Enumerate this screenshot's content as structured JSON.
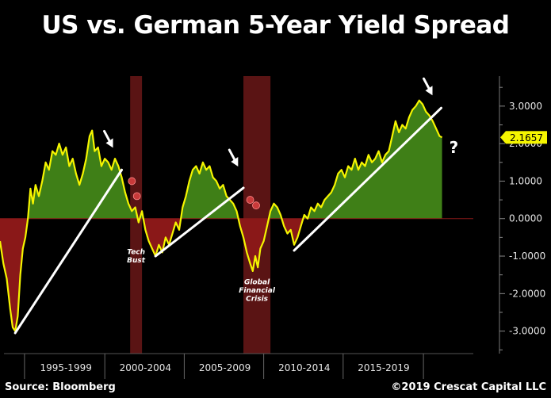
{
  "colors": {
    "background": "#000000",
    "line": "#f5f500",
    "positive_fill": "#3f7f17",
    "negative_fill": "#8a1818",
    "recession": "#5a1414",
    "trendline": "#ffffff",
    "current_value_box": "#f5f500"
  },
  "footer": {
    "source": "Source: Bloomberg",
    "copyright": "©2019 Crescat Capital LLC"
  },
  "chart_data": {
    "type": "area",
    "title": "US vs. German 5-Year Yield Spread",
    "x_axis": {
      "range": [
        1993.5,
        2021.5
      ],
      "tick_labels": [
        {
          "label": "1995-1999",
          "center": 1997.4
        },
        {
          "label": "2000-2004",
          "center": 2002.1
        },
        {
          "label": "2005-2009",
          "center": 2006.8
        },
        {
          "label": "2010-2014",
          "center": 2011.5
        },
        {
          "label": "2015-2019",
          "center": 2016.2
        }
      ],
      "period_boundaries": [
        1994.95,
        1999.7,
        2004.4,
        2009.1,
        2013.8,
        2018.55
      ]
    },
    "y_axis": {
      "range": [
        -3.6,
        3.8
      ],
      "position": "right",
      "ticks": [
        3,
        2,
        1,
        0,
        -1,
        -2,
        -3
      ],
      "tick_labels": [
        "3.0000",
        "2.0000",
        "1.0000",
        "0.0000",
        "-1.0000",
        "-2.0000",
        "-3.0000"
      ]
    },
    "current_value": {
      "value": 2.1657,
      "label": "2.1657"
    },
    "recessions": [
      {
        "start": 2001.2,
        "end": 2001.9
      },
      {
        "start": 2007.9,
        "end": 2009.5
      }
    ],
    "series": [
      {
        "values": [
          [
            1993.5,
            -0.6
          ],
          [
            1993.7,
            -1.2
          ],
          [
            1993.9,
            -1.6
          ],
          [
            1994.1,
            -2.4
          ],
          [
            1994.25,
            -2.9
          ],
          [
            1994.4,
            -3.0
          ],
          [
            1994.55,
            -2.6
          ],
          [
            1994.7,
            -1.5
          ],
          [
            1994.85,
            -0.8
          ],
          [
            1995.0,
            -0.5
          ],
          [
            1995.15,
            0.0
          ],
          [
            1995.3,
            0.8
          ],
          [
            1995.45,
            0.4
          ],
          [
            1995.6,
            0.9
          ],
          [
            1995.8,
            0.6
          ],
          [
            1996.0,
            1.0
          ],
          [
            1996.2,
            1.5
          ],
          [
            1996.4,
            1.3
          ],
          [
            1996.6,
            1.8
          ],
          [
            1996.8,
            1.7
          ],
          [
            1997.0,
            2.0
          ],
          [
            1997.2,
            1.7
          ],
          [
            1997.4,
            1.9
          ],
          [
            1997.6,
            1.4
          ],
          [
            1997.8,
            1.6
          ],
          [
            1998.0,
            1.2
          ],
          [
            1998.2,
            0.9
          ],
          [
            1998.4,
            1.2
          ],
          [
            1998.6,
            1.6
          ],
          [
            1998.8,
            2.2
          ],
          [
            1998.95,
            2.35
          ],
          [
            1999.1,
            1.8
          ],
          [
            1999.3,
            1.9
          ],
          [
            1999.5,
            1.4
          ],
          [
            1999.7,
            1.6
          ],
          [
            1999.9,
            1.5
          ],
          [
            2000.1,
            1.3
          ],
          [
            2000.3,
            1.6
          ],
          [
            2000.5,
            1.4
          ],
          [
            2000.7,
            1.1
          ],
          [
            2000.9,
            0.7
          ],
          [
            2001.1,
            0.4
          ],
          [
            2001.3,
            0.2
          ],
          [
            2001.5,
            0.3
          ],
          [
            2001.7,
            -0.1
          ],
          [
            2001.9,
            0.2
          ],
          [
            2002.1,
            -0.3
          ],
          [
            2002.3,
            -0.6
          ],
          [
            2002.5,
            -0.8
          ],
          [
            2002.7,
            -1.0
          ],
          [
            2002.9,
            -0.7
          ],
          [
            2003.1,
            -0.9
          ],
          [
            2003.3,
            -0.5
          ],
          [
            2003.5,
            -0.7
          ],
          [
            2003.7,
            -0.4
          ],
          [
            2003.9,
            -0.1
          ],
          [
            2004.1,
            -0.3
          ],
          [
            2004.3,
            0.3
          ],
          [
            2004.5,
            0.6
          ],
          [
            2004.7,
            1.0
          ],
          [
            2004.9,
            1.3
          ],
          [
            2005.1,
            1.4
          ],
          [
            2005.3,
            1.2
          ],
          [
            2005.5,
            1.5
          ],
          [
            2005.7,
            1.3
          ],
          [
            2005.9,
            1.4
          ],
          [
            2006.1,
            1.1
          ],
          [
            2006.3,
            1.0
          ],
          [
            2006.5,
            0.8
          ],
          [
            2006.7,
            0.9
          ],
          [
            2006.9,
            0.6
          ],
          [
            2007.1,
            0.5
          ],
          [
            2007.3,
            0.4
          ],
          [
            2007.5,
            0.2
          ],
          [
            2007.7,
            -0.2
          ],
          [
            2007.9,
            -0.5
          ],
          [
            2008.1,
            -0.9
          ],
          [
            2008.3,
            -1.2
          ],
          [
            2008.45,
            -1.4
          ],
          [
            2008.6,
            -1.0
          ],
          [
            2008.75,
            -1.3
          ],
          [
            2008.9,
            -0.8
          ],
          [
            2009.1,
            -0.6
          ],
          [
            2009.3,
            -0.2
          ],
          [
            2009.5,
            0.2
          ],
          [
            2009.7,
            0.4
          ],
          [
            2009.9,
            0.3
          ],
          [
            2010.1,
            0.1
          ],
          [
            2010.3,
            -0.2
          ],
          [
            2010.5,
            -0.4
          ],
          [
            2010.7,
            -0.3
          ],
          [
            2010.9,
            -0.7
          ],
          [
            2011.1,
            -0.5
          ],
          [
            2011.3,
            -0.2
          ],
          [
            2011.5,
            0.1
          ],
          [
            2011.7,
            0.0
          ],
          [
            2011.9,
            0.3
          ],
          [
            2012.1,
            0.2
          ],
          [
            2012.3,
            0.4
          ],
          [
            2012.5,
            0.3
          ],
          [
            2012.7,
            0.5
          ],
          [
            2012.9,
            0.6
          ],
          [
            2013.1,
            0.7
          ],
          [
            2013.3,
            0.9
          ],
          [
            2013.5,
            1.2
          ],
          [
            2013.7,
            1.3
          ],
          [
            2013.9,
            1.1
          ],
          [
            2014.1,
            1.4
          ],
          [
            2014.3,
            1.3
          ],
          [
            2014.5,
            1.6
          ],
          [
            2014.7,
            1.3
          ],
          [
            2014.9,
            1.5
          ],
          [
            2015.1,
            1.4
          ],
          [
            2015.3,
            1.7
          ],
          [
            2015.5,
            1.5
          ],
          [
            2015.7,
            1.6
          ],
          [
            2015.9,
            1.8
          ],
          [
            2016.1,
            1.5
          ],
          [
            2016.3,
            1.7
          ],
          [
            2016.5,
            1.8
          ],
          [
            2016.7,
            2.2
          ],
          [
            2016.9,
            2.6
          ],
          [
            2017.1,
            2.3
          ],
          [
            2017.3,
            2.5
          ],
          [
            2017.5,
            2.4
          ],
          [
            2017.7,
            2.7
          ],
          [
            2017.9,
            2.9
          ],
          [
            2018.1,
            3.0
          ],
          [
            2018.3,
            3.15
          ],
          [
            2018.5,
            3.05
          ],
          [
            2018.7,
            2.85
          ],
          [
            2018.9,
            2.75
          ],
          [
            2019.1,
            2.6
          ],
          [
            2019.3,
            2.4
          ],
          [
            2019.5,
            2.2
          ],
          [
            2019.65,
            2.1657
          ]
        ]
      }
    ],
    "trendlines": [
      {
        "from": [
          1994.4,
          -3.05
        ],
        "to": [
          2000.7,
          1.3
        ]
      },
      {
        "from": [
          2002.7,
          -1.0
        ],
        "to": [
          2007.9,
          0.82
        ]
      },
      {
        "from": [
          2010.9,
          -0.85
        ],
        "to": [
          2019.6,
          2.95
        ]
      }
    ],
    "arrows": [
      {
        "x": 1999.95,
        "y": 2.1
      },
      {
        "x": 2007.35,
        "y": 1.6
      },
      {
        "x": 2018.85,
        "y": 3.5
      }
    ],
    "annotations": [
      {
        "text_lines": [
          "Tech",
          "Bust"
        ],
        "x": 2001.55,
        "y": -0.95
      },
      {
        "text_lines": [
          "Global",
          "Financial",
          "Crisis"
        ],
        "x": 2008.7,
        "y": -1.75
      },
      {
        "text_lines": [
          "?"
        ],
        "x": 2020.35,
        "y": 1.75
      }
    ],
    "event_markers": [
      {
        "x": 2001.3,
        "y": 1.0
      },
      {
        "x": 2001.6,
        "y": 0.6
      },
      {
        "x": 2008.3,
        "y": 0.5
      },
      {
        "x": 2008.65,
        "y": 0.35
      }
    ]
  }
}
